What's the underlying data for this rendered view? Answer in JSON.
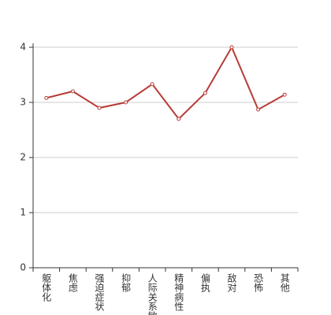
{
  "chart_data": {
    "type": "line",
    "categories": [
      "躯体化",
      "焦虑",
      "强迫症状",
      "抑郁",
      "人际关系敏感",
      "精神病性",
      "偏执",
      "敌对",
      "恐怖",
      "其他"
    ],
    "values": [
      3.08,
      3.2,
      2.9,
      3.0,
      3.33,
      2.7,
      3.17,
      4.0,
      2.87,
      3.14
    ],
    "color": "#b83b36",
    "ylim": [
      0,
      4
    ],
    "yticks": [
      0,
      1,
      2,
      3,
      4
    ],
    "grid": true
  }
}
